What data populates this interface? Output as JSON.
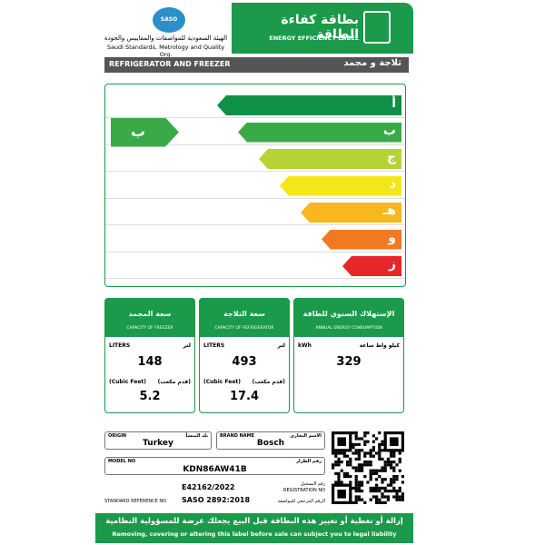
{
  "header": {
    "logo": "SASO",
    "org_ar": "الهيئة السعودية للمواصفات والمقاييس والجودة",
    "org_en": "Saudi Standards, Metrology and Quality Org.",
    "label_ar": "بطاقة كفاءة الطاقة",
    "label_en": "ENERGY EFFICIENCY LABEL"
  },
  "product": {
    "en": "REFRIGERATOR AND FREEZER",
    "ar": "ثلاجة و مجمد"
  },
  "ratings": [
    {
      "letter": "أ",
      "color": "#0f9147"
    },
    {
      "letter": "ب",
      "color": "#3aaa48"
    },
    {
      "letter": "ج",
      "color": "#b5d334"
    },
    {
      "letter": "د",
      "color": "#f5e61a"
    },
    {
      "letter": "هـ",
      "color": "#f8b71d"
    },
    {
      "letter": "و",
      "color": "#f07a22"
    },
    {
      "letter": "ز",
      "color": "#e5262b"
    }
  ],
  "current_rating": "ب",
  "panels": [
    {
      "title_ar": "سعة المجمد",
      "title_en": "CAPACITY OF FREEZER",
      "unit1_en": "LITERS",
      "unit1_ar": "لتر",
      "value1": "148",
      "unit2_en": "(Cubic Feet)",
      "unit2_ar": "(قدم مكعب)",
      "value2": "5.2"
    },
    {
      "title_ar": "سعة الثلاجة",
      "title_en": "CAPACITY OF REFRIGERATOR",
      "unit1_en": "LITERS",
      "unit1_ar": "لتر",
      "value1": "493",
      "unit2_en": "(Cubic Feet)",
      "unit2_ar": "(قدم مكعب)",
      "value2": "17.4"
    },
    {
      "title_ar": "الإستهلاك السنوي للطاقة",
      "title_en": "ANNUAL ENERGY CONSUMPTION",
      "unit1_en": "kWh",
      "unit1_ar": "كيلو واط ساعة",
      "value1": "329"
    }
  ],
  "info": {
    "origin_label_en": "ORIGIN",
    "origin_label_ar": "بلد المنشأ",
    "origin": "Turkey",
    "brand_label_en": "BRAND NAME",
    "brand_label_ar": "الاسم التجاري",
    "brand": "Bosch",
    "model_label_en": "MODEL NO",
    "model_label_ar": "رقم الطراز",
    "model": "KDN86AW41B",
    "reg_label_ar": "رقم التسجيل",
    "reg_label_en": "REGISTRATION NO",
    "reg": "E42162/2022",
    "std_label_en": "STANDARD REFERENCE NO",
    "std": "SASO 2892:2018",
    "std_label_ar": "الرقم المرجعي للمواصفة"
  },
  "footer": {
    "ar": "إزالة أو تغطية أو تغيير هذه البطاقة قبل البيع يجعلك عرضة للمسؤولية النظامية",
    "en": "Removing, covering or altering this label before sale can subject you to legal liability"
  }
}
